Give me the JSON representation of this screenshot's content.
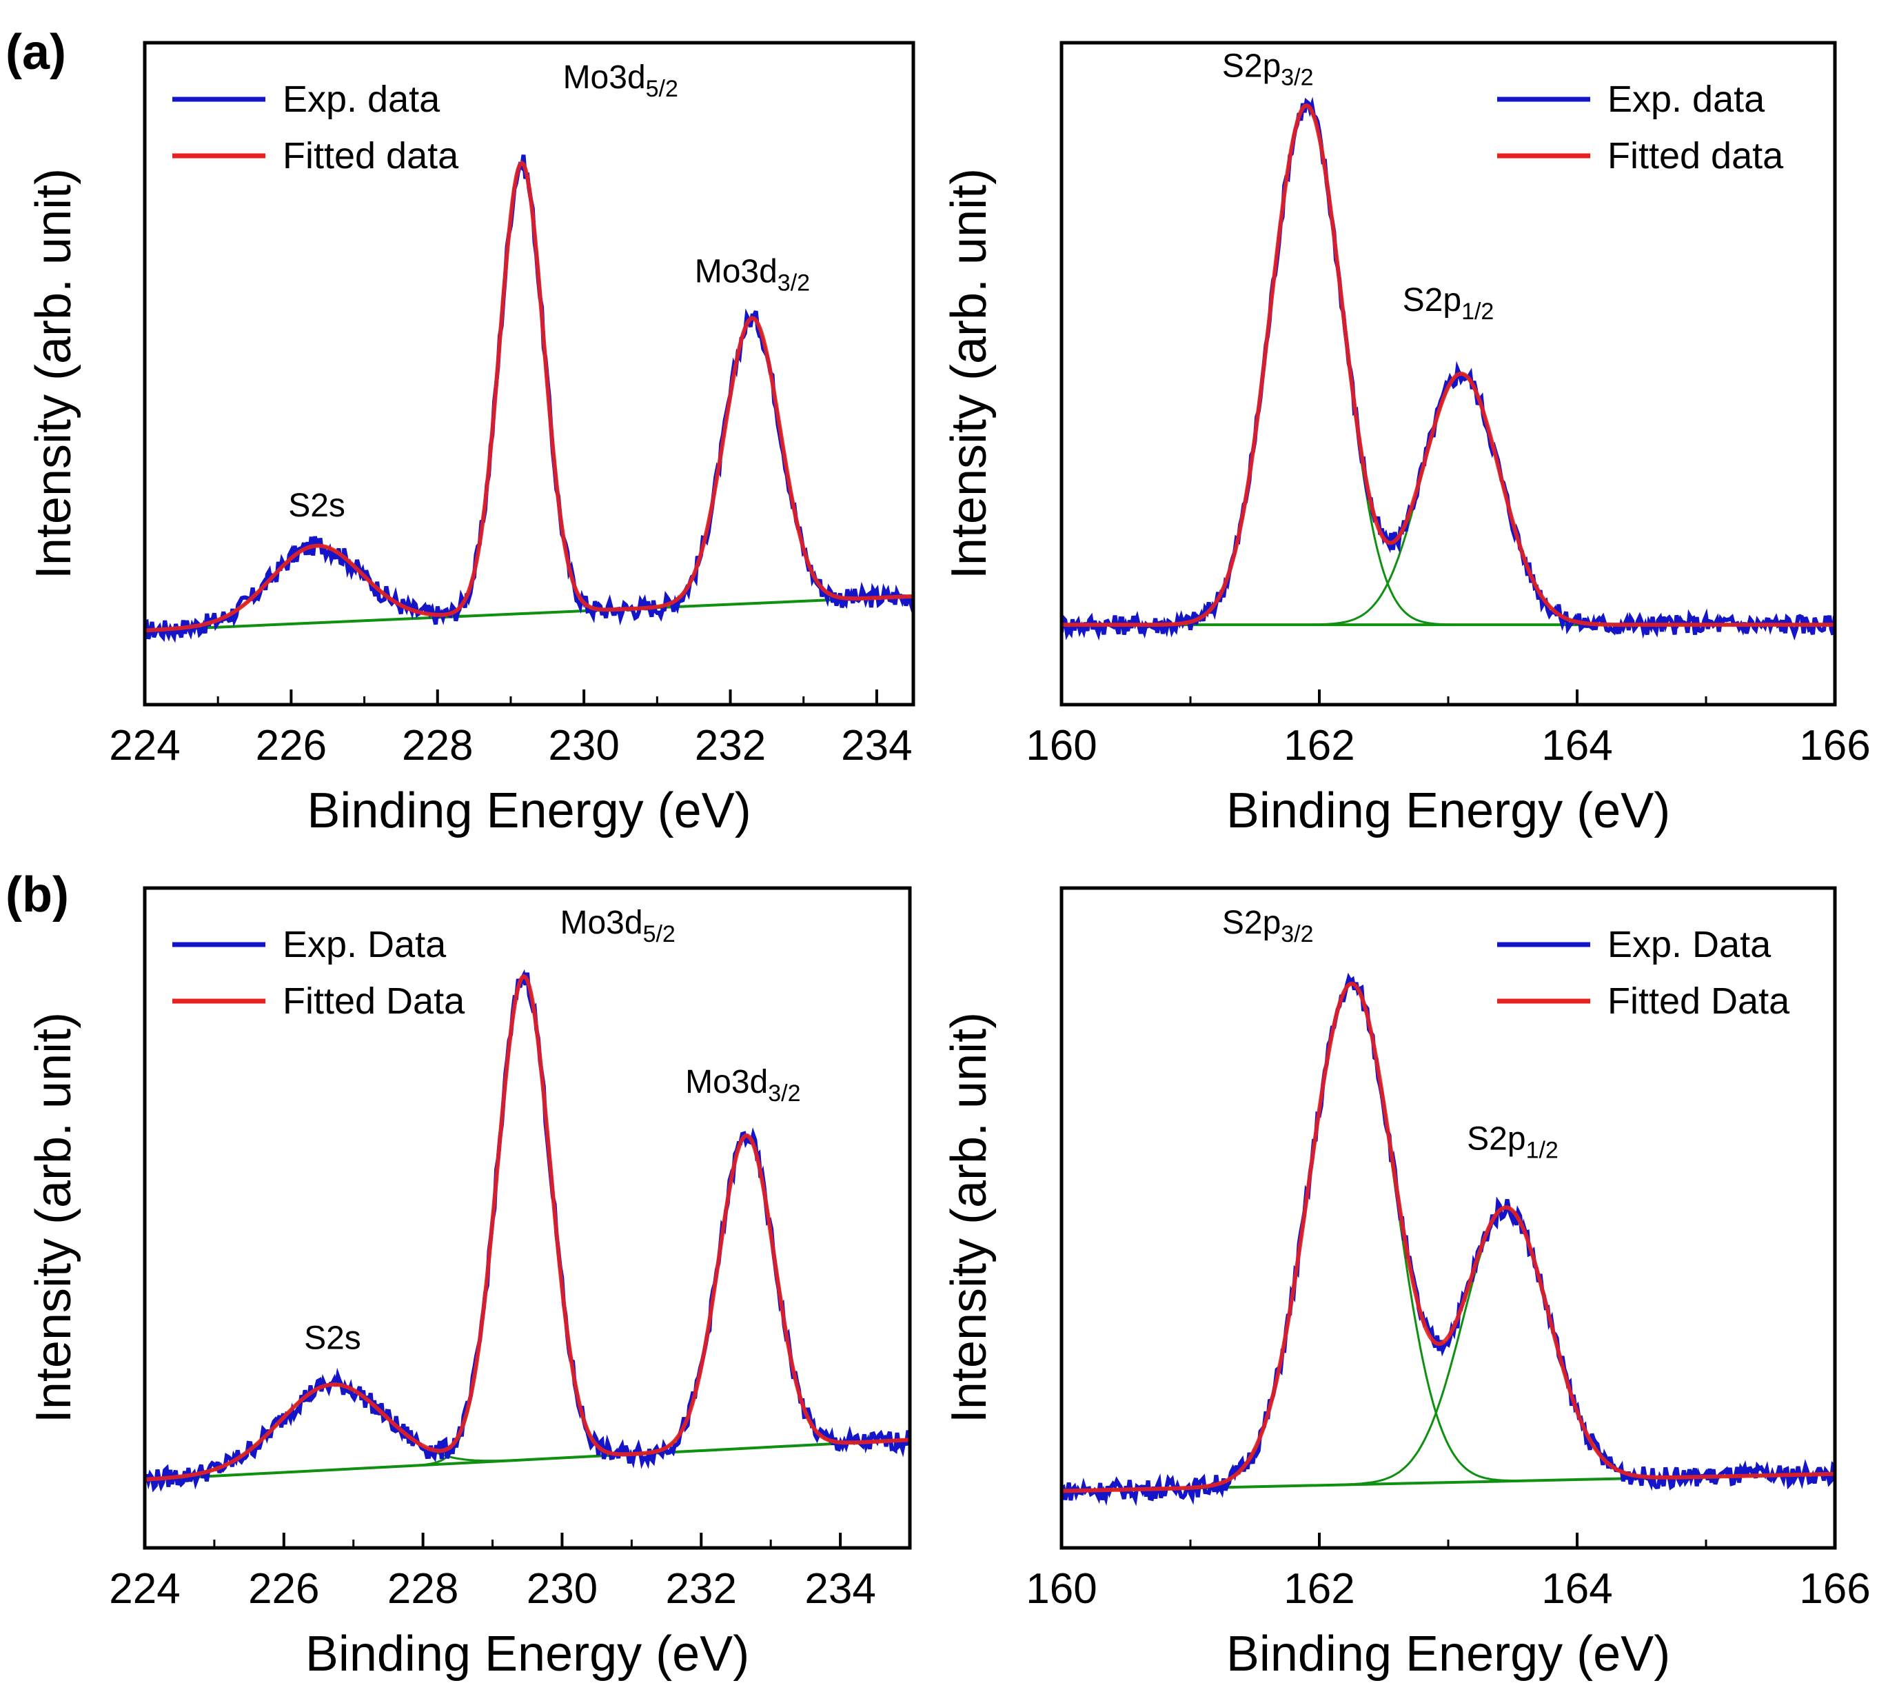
{
  "colors": {
    "experimental": "#1414c8",
    "fitted": "#e8201e",
    "component": "#109010",
    "background": "#109010",
    "frame": "#000000"
  },
  "panel_labels": [
    "(a)",
    "(b)"
  ],
  "chart_data": [
    {
      "type": "line",
      "panel": "(a)",
      "xlabel": "Binding Energy (eV)",
      "ylabel": "Intensity (arb. unit)",
      "xlim": [
        224,
        234.5
      ],
      "ylim": [
        0,
        1.16
      ],
      "xticks": [
        224,
        226,
        228,
        230,
        232,
        234
      ],
      "xtick_labels": [
        "224",
        "226",
        "228",
        "230",
        "232",
        "234"
      ],
      "legend": [
        "Exp. data",
        "Fitted data"
      ],
      "legend_position": "top-left",
      "baseline": [
        [
          224,
          0.13
        ],
        [
          234.5,
          0.19
        ]
      ],
      "peaks": [
        {
          "label": "S2s",
          "center": 226.35,
          "height": 0.135,
          "width": 0.62
        },
        {
          "label": "Mo3d5/2",
          "center": 229.15,
          "height": 0.79,
          "width": 0.3
        },
        {
          "label": "Mo3d3/2",
          "center": 232.3,
          "height": 0.5,
          "width": 0.38
        }
      ],
      "annotations": [
        {
          "text": "S2s",
          "sub": "",
          "x": 226.35,
          "y": 0.33
        },
        {
          "text": "Mo3d",
          "sub": "5/2",
          "x": 230.5,
          "y": 1.08
        },
        {
          "text": "Mo3d",
          "sub": "3/2",
          "x": 232.3,
          "y": 0.74
        }
      ]
    },
    {
      "type": "line",
      "panel": "(a)",
      "xlabel": "Binding Energy (eV)",
      "ylabel": "Intensity (arb. unit)",
      "xlim": [
        160,
        166
      ],
      "ylim": [
        0,
        1.16
      ],
      "xticks": [
        160,
        162,
        164,
        166
      ],
      "xtick_labels": [
        "160",
        "162",
        "164",
        "166"
      ],
      "legend": [
        "Exp. data",
        "Fitted data"
      ],
      "legend_position": "top-right",
      "baseline": [
        [
          160,
          0.14
        ],
        [
          166,
          0.14
        ]
      ],
      "peaks": [
        {
          "label": "S2p3/2",
          "center": 161.9,
          "height": 0.91,
          "width": 0.28
        },
        {
          "label": "S2p1/2",
          "center": 163.1,
          "height": 0.44,
          "width": 0.3
        }
      ],
      "annotations": [
        {
          "text": "S2p",
          "sub": "3/2",
          "x": 161.6,
          "y": 1.1
        },
        {
          "text": "S2p",
          "sub": "1/2",
          "x": 163.0,
          "y": 0.69
        }
      ]
    },
    {
      "type": "line",
      "panel": "(b)",
      "xlabel": "Binding Energy (eV)",
      "ylabel": "Intensity (arb. unit)",
      "xlim": [
        224,
        235
      ],
      "ylim": [
        0,
        1.16
      ],
      "xticks": [
        224,
        226,
        228,
        230,
        232,
        234
      ],
      "xtick_labels": [
        "224",
        "226",
        "228",
        "230",
        "232",
        "234"
      ],
      "legend": [
        "Exp. Data",
        "Fitted Data"
      ],
      "legend_position": "top-left",
      "baseline": [
        [
          224,
          0.12
        ],
        [
          235,
          0.19
        ]
      ],
      "peaks": [
        {
          "label": "S2s",
          "center": 226.7,
          "height": 0.15,
          "width": 0.75
        },
        {
          "label": "Mo3d5/2",
          "center": 229.45,
          "height": 0.85,
          "width": 0.38
        },
        {
          "label": "Mo3d3/2",
          "center": 232.65,
          "height": 0.55,
          "width": 0.4
        }
      ],
      "annotations": [
        {
          "text": "S2s",
          "sub": "",
          "x": 226.7,
          "y": 0.35
        },
        {
          "text": "Mo3d",
          "sub": "5/2",
          "x": 230.8,
          "y": 1.08
        },
        {
          "text": "Mo3d",
          "sub": "3/2",
          "x": 232.6,
          "y": 0.8
        }
      ]
    },
    {
      "type": "line",
      "panel": "(b)",
      "xlabel": "Binding Energy (eV)",
      "ylabel": "Intensity (arb. unit)",
      "xlim": [
        160,
        166
      ],
      "ylim": [
        0,
        1.16
      ],
      "xticks": [
        160,
        162,
        164,
        166
      ],
      "xtick_labels": [
        "160",
        "162",
        "164",
        "166"
      ],
      "legend": [
        "Exp. Data",
        "Fitted Data"
      ],
      "legend_position": "top-right",
      "baseline": [
        [
          160,
          0.1
        ],
        [
          166,
          0.13
        ]
      ],
      "peaks": [
        {
          "label": "S2p3/2",
          "center": 162.25,
          "height": 0.88,
          "width": 0.33
        },
        {
          "label": "S2p1/2",
          "center": 163.45,
          "height": 0.48,
          "width": 0.33
        }
      ],
      "annotations": [
        {
          "text": "S2p",
          "sub": "3/2",
          "x": 161.6,
          "y": 1.08
        },
        {
          "text": "S2p",
          "sub": "1/2",
          "x": 163.5,
          "y": 0.7
        }
      ]
    }
  ]
}
